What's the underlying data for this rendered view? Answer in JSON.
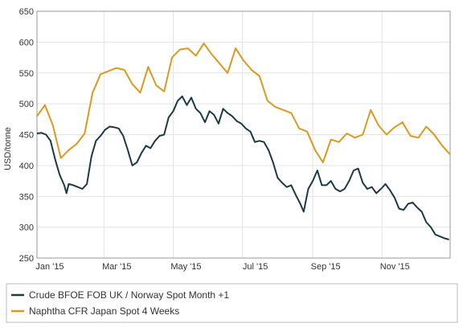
{
  "chart_data": {
    "type": "line",
    "ylabel": "USD/tonne",
    "xlabel": "",
    "ylim": [
      250,
      650
    ],
    "yticks": [
      250,
      300,
      350,
      400,
      450,
      500,
      550,
      600,
      650
    ],
    "xlim": [
      "2015-01-01",
      "2015-12-31"
    ],
    "xticks": [
      {
        "label": "Jan '15",
        "date": "2015-01-01"
      },
      {
        "label": "Mar '15",
        "date": "2015-03-01"
      },
      {
        "label": "May '15",
        "date": "2015-05-01"
      },
      {
        "label": "Jul '15",
        "date": "2015-07-01"
      },
      {
        "label": "Sep '15",
        "date": "2015-09-01"
      },
      {
        "label": "Nov '15",
        "date": "2015-11-01"
      }
    ],
    "grid": true,
    "legend_position": "bottom",
    "series": [
      {
        "name": "Crude BFOE FOB UK / Norway Spot Month +1",
        "color": "#1c3a44",
        "points": [
          [
            "2015-01-01",
            452
          ],
          [
            "2015-01-05",
            453
          ],
          [
            "2015-01-09",
            450
          ],
          [
            "2015-01-13",
            440
          ],
          [
            "2015-01-17",
            410
          ],
          [
            "2015-01-21",
            385
          ],
          [
            "2015-01-25",
            368
          ],
          [
            "2015-01-27",
            355
          ],
          [
            "2015-01-29",
            370
          ],
          [
            "2015-02-02",
            368
          ],
          [
            "2015-02-06",
            365
          ],
          [
            "2015-02-10",
            362
          ],
          [
            "2015-02-14",
            370
          ],
          [
            "2015-02-18",
            415
          ],
          [
            "2015-02-22",
            440
          ],
          [
            "2015-02-26",
            448
          ],
          [
            "2015-03-02",
            458
          ],
          [
            "2015-03-06",
            463
          ],
          [
            "2015-03-10",
            462
          ],
          [
            "2015-03-14",
            460
          ],
          [
            "2015-03-18",
            448
          ],
          [
            "2015-03-22",
            425
          ],
          [
            "2015-03-26",
            400
          ],
          [
            "2015-03-30",
            405
          ],
          [
            "2015-04-03",
            420
          ],
          [
            "2015-04-07",
            432
          ],
          [
            "2015-04-11",
            428
          ],
          [
            "2015-04-15",
            440
          ],
          [
            "2015-04-19",
            448
          ],
          [
            "2015-04-23",
            450
          ],
          [
            "2015-04-27",
            478
          ],
          [
            "2015-05-01",
            488
          ],
          [
            "2015-05-05",
            505
          ],
          [
            "2015-05-09",
            512
          ],
          [
            "2015-05-13",
            498
          ],
          [
            "2015-05-17",
            510
          ],
          [
            "2015-05-21",
            492
          ],
          [
            "2015-05-25",
            485
          ],
          [
            "2015-05-29",
            470
          ],
          [
            "2015-06-02",
            488
          ],
          [
            "2015-06-06",
            482
          ],
          [
            "2015-06-10",
            468
          ],
          [
            "2015-06-14",
            492
          ],
          [
            "2015-06-18",
            485
          ],
          [
            "2015-06-22",
            480
          ],
          [
            "2015-06-26",
            472
          ],
          [
            "2015-06-30",
            468
          ],
          [
            "2015-07-04",
            460
          ],
          [
            "2015-07-08",
            455
          ],
          [
            "2015-07-12",
            438
          ],
          [
            "2015-07-16",
            440
          ],
          [
            "2015-07-20",
            438
          ],
          [
            "2015-07-24",
            425
          ],
          [
            "2015-07-28",
            405
          ],
          [
            "2015-08-01",
            380
          ],
          [
            "2015-08-05",
            372
          ],
          [
            "2015-08-09",
            365
          ],
          [
            "2015-08-13",
            368
          ],
          [
            "2015-08-17",
            352
          ],
          [
            "2015-08-21",
            338
          ],
          [
            "2015-08-24",
            325
          ],
          [
            "2015-08-28",
            362
          ],
          [
            "2015-09-01",
            375
          ],
          [
            "2015-09-05",
            392
          ],
          [
            "2015-09-09",
            368
          ],
          [
            "2015-09-13",
            368
          ],
          [
            "2015-09-17",
            375
          ],
          [
            "2015-09-21",
            362
          ],
          [
            "2015-09-25",
            358
          ],
          [
            "2015-09-29",
            362
          ],
          [
            "2015-10-03",
            375
          ],
          [
            "2015-10-07",
            392
          ],
          [
            "2015-10-11",
            395
          ],
          [
            "2015-10-15",
            372
          ],
          [
            "2015-10-19",
            362
          ],
          [
            "2015-10-23",
            365
          ],
          [
            "2015-10-27",
            355
          ],
          [
            "2015-10-31",
            362
          ],
          [
            "2015-11-04",
            370
          ],
          [
            "2015-11-08",
            360
          ],
          [
            "2015-11-12",
            348
          ],
          [
            "2015-11-16",
            330
          ],
          [
            "2015-11-20",
            328
          ],
          [
            "2015-11-24",
            338
          ],
          [
            "2015-11-28",
            340
          ],
          [
            "2015-12-02",
            332
          ],
          [
            "2015-12-06",
            325
          ],
          [
            "2015-12-10",
            308
          ],
          [
            "2015-12-14",
            300
          ],
          [
            "2015-12-18",
            288
          ],
          [
            "2015-12-22",
            285
          ],
          [
            "2015-12-26",
            282
          ],
          [
            "2015-12-30",
            280
          ]
        ]
      },
      {
        "name": "Naphtha CFR Japan Spot 4 Weeks",
        "color": "#d99a1e",
        "points": [
          [
            "2015-01-01",
            480
          ],
          [
            "2015-01-08",
            498
          ],
          [
            "2015-01-15",
            465
          ],
          [
            "2015-01-22",
            412
          ],
          [
            "2015-01-29",
            425
          ],
          [
            "2015-02-05",
            435
          ],
          [
            "2015-02-12",
            452
          ],
          [
            "2015-02-19",
            518
          ],
          [
            "2015-02-26",
            548
          ],
          [
            "2015-03-05",
            553
          ],
          [
            "2015-03-12",
            558
          ],
          [
            "2015-03-19",
            555
          ],
          [
            "2015-03-26",
            532
          ],
          [
            "2015-04-02",
            518
          ],
          [
            "2015-04-09",
            560
          ],
          [
            "2015-04-16",
            530
          ],
          [
            "2015-04-23",
            520
          ],
          [
            "2015-04-30",
            575
          ],
          [
            "2015-05-07",
            588
          ],
          [
            "2015-05-14",
            590
          ],
          [
            "2015-05-21",
            578
          ],
          [
            "2015-05-28",
            598
          ],
          [
            "2015-06-04",
            580
          ],
          [
            "2015-06-11",
            565
          ],
          [
            "2015-06-18",
            550
          ],
          [
            "2015-06-25",
            590
          ],
          [
            "2015-07-02",
            570
          ],
          [
            "2015-07-09",
            555
          ],
          [
            "2015-07-16",
            545
          ],
          [
            "2015-07-23",
            505
          ],
          [
            "2015-07-30",
            495
          ],
          [
            "2015-08-06",
            490
          ],
          [
            "2015-08-13",
            485
          ],
          [
            "2015-08-20",
            460
          ],
          [
            "2015-08-27",
            455
          ],
          [
            "2015-09-03",
            425
          ],
          [
            "2015-09-10",
            405
          ],
          [
            "2015-09-17",
            442
          ],
          [
            "2015-09-24",
            438
          ],
          [
            "2015-10-01",
            452
          ],
          [
            "2015-10-08",
            445
          ],
          [
            "2015-10-15",
            450
          ],
          [
            "2015-10-22",
            490
          ],
          [
            "2015-10-29",
            465
          ],
          [
            "2015-11-05",
            450
          ],
          [
            "2015-11-12",
            462
          ],
          [
            "2015-11-19",
            470
          ],
          [
            "2015-11-26",
            448
          ],
          [
            "2015-12-03",
            445
          ],
          [
            "2015-12-10",
            463
          ],
          [
            "2015-12-17",
            450
          ],
          [
            "2015-12-24",
            432
          ],
          [
            "2015-12-31",
            418
          ]
        ]
      }
    ]
  }
}
